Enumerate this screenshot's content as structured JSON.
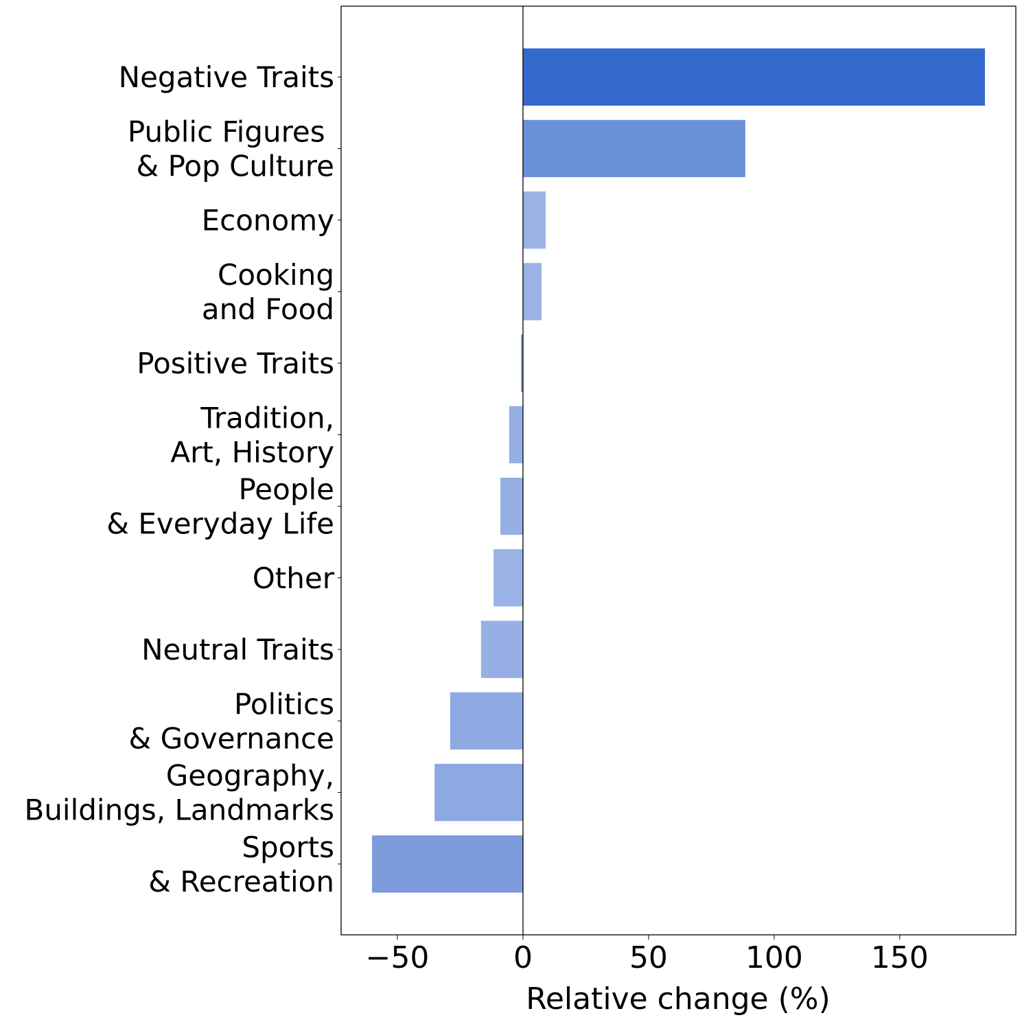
{
  "chart_data": {
    "type": "barh",
    "xlabel": "Relative change (%)",
    "categories": [
      "Negative Traits",
      "Public Figures \n& Pop Culture",
      "Economy",
      "Cooking\nand Food",
      "Positive Traits",
      "Tradition,\nArt, History",
      "People\n& Everyday Life",
      "Other",
      "Neutral Traits",
      "Politics\n& Governance",
      "Geography,\nBuildings, Landmarks",
      "Sports\n& Recreation"
    ],
    "values": [
      183.9,
      88.5,
      9,
      7.4,
      -0.8,
      -5.5,
      -9,
      -11.7,
      -16.7,
      -29,
      -35.2,
      -60.1
    ],
    "colors": [
      "#3368cc",
      "#6a90d9",
      "#9bb3e6",
      "#9bb3e6",
      "#7f9ad9",
      "#96b0e4",
      "#95afe4",
      "#9ab2e5",
      "#96afe4",
      "#8fa9e2",
      "#8ea8e1",
      "#7e9bdb"
    ],
    "xlim": [
      -72.4,
      196.2
    ],
    "xticks": [
      {
        "value": -50,
        "label": "−50"
      },
      0,
      50,
      100,
      150
    ]
  }
}
